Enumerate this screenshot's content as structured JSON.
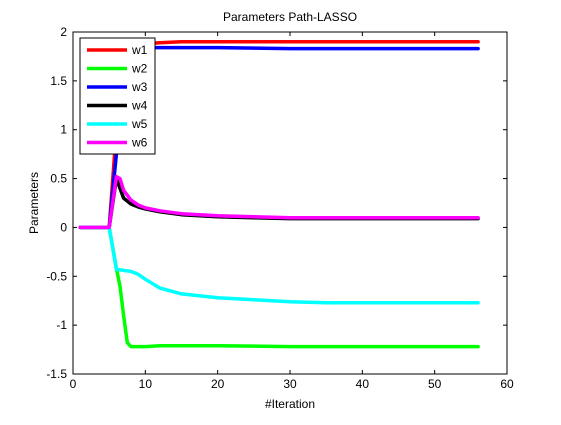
{
  "chart_data": {
    "type": "line",
    "title": "Parameters Path-LASSO",
    "xlabel": "#Iteration",
    "ylabel": "Parameters",
    "xlim": [
      0,
      60
    ],
    "ylim": [
      -1.5,
      2
    ],
    "xticks": [
      0,
      10,
      20,
      30,
      40,
      50,
      60
    ],
    "yticks": [
      -1.5,
      -1,
      -0.5,
      0,
      0.5,
      1,
      1.5,
      2
    ],
    "xtick_labels": [
      "0",
      "10",
      "20",
      "30",
      "40",
      "50",
      "60"
    ],
    "ytick_labels": [
      "-1.5",
      "-1",
      "-0.5",
      "0",
      "0.5",
      "1",
      "1.5",
      "2"
    ],
    "grid": false,
    "legend_position": "top-left",
    "series": [
      {
        "name": "w1",
        "color": "#ff0000",
        "x": [
          1,
          5,
          6,
          7,
          8,
          9,
          10,
          12,
          15,
          20,
          30,
          40,
          56
        ],
        "y": [
          0,
          0,
          1.0,
          1.7,
          1.84,
          1.87,
          1.88,
          1.89,
          1.9,
          1.9,
          1.9,
          1.9,
          1.9
        ]
      },
      {
        "name": "w2",
        "color": "#00ff00",
        "x": [
          1,
          5,
          6,
          6.5,
          7,
          7.5,
          8,
          9,
          10,
          12,
          15,
          20,
          30,
          40,
          56
        ],
        "y": [
          0,
          0,
          -0.42,
          -0.6,
          -0.9,
          -1.18,
          -1.22,
          -1.22,
          -1.22,
          -1.21,
          -1.21,
          -1.21,
          -1.22,
          -1.22,
          -1.22
        ]
      },
      {
        "name": "w3",
        "color": "#0000ff",
        "x": [
          1,
          5,
          6,
          7,
          8,
          9,
          10,
          12,
          15,
          20,
          30,
          40,
          56
        ],
        "y": [
          0,
          0,
          0.75,
          1.55,
          1.8,
          1.83,
          1.84,
          1.84,
          1.84,
          1.84,
          1.83,
          1.83,
          1.83
        ]
      },
      {
        "name": "w4",
        "color": "#000000",
        "x": [
          1,
          5,
          6,
          6.5,
          7,
          8,
          9,
          10,
          12,
          15,
          20,
          25,
          30,
          40,
          56
        ],
        "y": [
          0,
          0,
          0.5,
          0.4,
          0.3,
          0.24,
          0.21,
          0.19,
          0.16,
          0.13,
          0.11,
          0.1,
          0.09,
          0.09,
          0.09
        ]
      },
      {
        "name": "w5",
        "color": "#00ffff",
        "x": [
          1,
          5,
          6,
          7,
          8,
          9,
          10,
          12,
          15,
          20,
          25,
          30,
          35,
          40,
          50,
          56
        ],
        "y": [
          0,
          0,
          -0.43,
          -0.44,
          -0.45,
          -0.48,
          -0.53,
          -0.62,
          -0.68,
          -0.72,
          -0.74,
          -0.76,
          -0.77,
          -0.77,
          -0.77,
          -0.77
        ]
      },
      {
        "name": "w6",
        "color": "#ff00ff",
        "x": [
          1,
          5,
          6,
          6.5,
          7,
          8,
          9,
          10,
          12,
          15,
          20,
          25,
          30,
          40,
          56
        ],
        "y": [
          0,
          0,
          0.52,
          0.5,
          0.38,
          0.28,
          0.23,
          0.2,
          0.17,
          0.14,
          0.12,
          0.11,
          0.1,
          0.1,
          0.1
        ]
      }
    ]
  }
}
